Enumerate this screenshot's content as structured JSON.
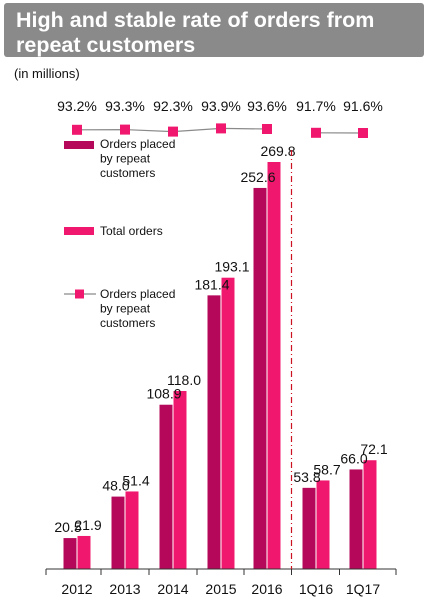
{
  "header": {
    "title_line1": "High and stable rate of orders from",
    "title_line2": "repeat customers"
  },
  "units_label": "(in millions)",
  "colors": {
    "repeat_bar": "#b5085a",
    "total_bar": "#f0186e",
    "rate_marker": "#f0186e",
    "rate_line": "#8a8a8a",
    "divider": "#cc1122",
    "header_bg": "#8a8a8a"
  },
  "chart_data": {
    "type": "bar",
    "categories": [
      "2012",
      "2013",
      "2014",
      "2015",
      "2016",
      "1Q16",
      "1Q17"
    ],
    "series": [
      {
        "name": "Orders placed by repeat customers",
        "values": [
          20.5,
          48.0,
          108.9,
          181.4,
          252.6,
          53.8,
          66.0
        ]
      },
      {
        "name": "Total orders",
        "values": [
          21.9,
          51.4,
          118.0,
          193.1,
          269.8,
          58.7,
          72.1
        ]
      }
    ],
    "rate_series": {
      "name": "Orders placed by repeat customers",
      "values": [
        93.2,
        93.3,
        92.3,
        93.9,
        93.6,
        91.7,
        91.6
      ],
      "labels": [
        "93.2%",
        "93.3%",
        "92.3%",
        "93.9%",
        "93.6%",
        "91.7%",
        "91.6%"
      ]
    },
    "value_labels": {
      "repeat": [
        "20.5",
        "48.0",
        "108.9",
        "181.4",
        "252.6",
        "53.8",
        "66.0"
      ],
      "total": [
        "21.9",
        "51.4",
        "118.0",
        "193.1",
        "269.8",
        "58.7",
        "72.1"
      ]
    },
    "legend": {
      "repeat_label_lines": [
        "Orders placed",
        "by repeat",
        "customers"
      ],
      "total_label_lines": [
        "Total orders"
      ],
      "rate_label_lines": [
        "Orders placed",
        "by repeat",
        "customers"
      ],
      "placement": "left"
    },
    "divider_after_category": "2016",
    "grid": false
  }
}
